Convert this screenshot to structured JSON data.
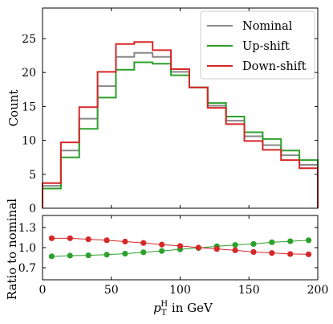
{
  "chart_data": [
    {
      "type": "step-histogram",
      "ylabel": "Count",
      "xlim": [
        0,
        200
      ],
      "ylim": [
        0,
        29.5
      ],
      "bin_edges": [
        0,
        13.33,
        26.67,
        40,
        53.33,
        66.67,
        80,
        93.33,
        106.67,
        120,
        133.33,
        146.67,
        160,
        173.33,
        186.67,
        200
      ],
      "yticks": [
        0,
        5,
        10,
        15,
        20,
        25
      ],
      "ytick_labels": [
        "0",
        "5",
        "10",
        "15",
        "20",
        "25"
      ],
      "legend": {
        "position": "top-right"
      },
      "series": [
        {
          "name": "Nominal",
          "color": "#888888",
          "values": [
            3.3,
            8.5,
            13.2,
            18.0,
            22.3,
            22.9,
            22.3,
            20.1,
            17.8,
            15.1,
            12.9,
            10.6,
            9.3,
            7.8,
            6.4
          ]
        },
        {
          "name": "Up-shift",
          "color": "#2ca02c",
          "values": [
            2.9,
            7.5,
            11.7,
            16.3,
            20.4,
            21.5,
            21.3,
            19.6,
            17.8,
            15.5,
            13.5,
            11.2,
            10.2,
            8.5,
            7.1
          ]
        },
        {
          "name": "Down-shift",
          "color": "#d62728",
          "values": [
            3.7,
            9.7,
            14.9,
            20.1,
            24.2,
            24.5,
            23.3,
            20.5,
            17.8,
            14.8,
            12.4,
            9.9,
            8.6,
            7.1,
            5.9
          ]
        }
      ]
    },
    {
      "type": "line",
      "ylabel": "Ratio to nominal",
      "xlabel_main": "p",
      "xlabel_sub": "T",
      "xlabel_sup": "H",
      "xlabel_suffix": " in GeV",
      "xlim": [
        0,
        200
      ],
      "ylim": [
        0.52,
        1.48
      ],
      "xticks": [
        0,
        50,
        100,
        150,
        200
      ],
      "xtick_labels": [
        "0",
        "50",
        "100",
        "150",
        "200"
      ],
      "yticks": [
        0.7,
        1.0,
        1.3
      ],
      "ytick_labels": [
        "0.7",
        "1.0",
        "1.3"
      ],
      "x": [
        6.67,
        20,
        33.33,
        46.67,
        60,
        73.33,
        86.67,
        100,
        113.33,
        126.67,
        140,
        153.33,
        166.67,
        180,
        193.33
      ],
      "series": [
        {
          "name": "Up-shift",
          "color": "#2ca02c",
          "values": [
            0.87,
            0.88,
            0.885,
            0.895,
            0.91,
            0.93,
            0.95,
            0.975,
            0.995,
            1.02,
            1.04,
            1.055,
            1.08,
            1.095,
            1.11
          ]
        },
        {
          "name": "Down-shift",
          "color": "#d62728",
          "values": [
            1.14,
            1.14,
            1.125,
            1.11,
            1.09,
            1.07,
            1.045,
            1.025,
            1.0,
            0.98,
            0.96,
            0.935,
            0.92,
            0.905,
            0.9
          ]
        }
      ]
    }
  ]
}
